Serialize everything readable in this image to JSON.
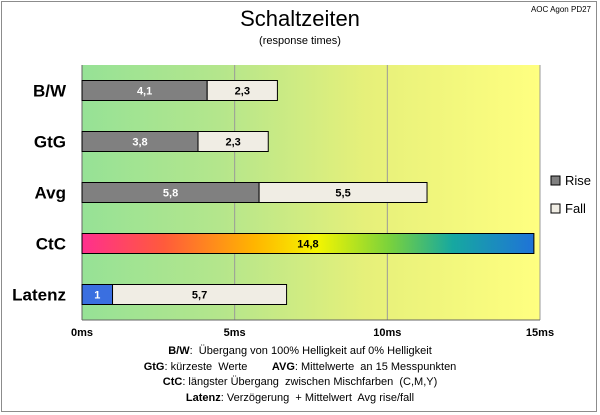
{
  "chart_data": {
    "type": "bar",
    "orientation": "horizontal",
    "stacked": true,
    "title": "Schaltzeiten",
    "subtitle": "(response times)",
    "corner_label": "AOC Agon PD27",
    "categories": [
      "B/W",
      "GtG",
      "Avg",
      "CtC",
      "Latenz"
    ],
    "series": [
      {
        "name": "Rise",
        "values": [
          4.1,
          3.8,
          5.8,
          null,
          1
        ],
        "labels": [
          "4,1",
          "3,8",
          "5,8",
          null,
          "1"
        ],
        "color": "#808080"
      },
      {
        "name": "Fall",
        "values": [
          2.3,
          2.3,
          5.5,
          null,
          5.7
        ],
        "labels": [
          "2,3",
          "2,3",
          "5,5",
          null,
          "5,7"
        ],
        "color": "#f0ede4"
      },
      {
        "name": "",
        "values": [
          null,
          null,
          null,
          14.8,
          null
        ],
        "labels": [
          null,
          null,
          null,
          "14,8",
          null
        ],
        "color": "rainbow"
      }
    ],
    "latenz_first_color": "#3a6fe0",
    "xlim": [
      0,
      15
    ],
    "xticks": [
      0,
      5,
      10,
      15
    ],
    "xtick_labels": [
      "0ms",
      "5ms",
      "10ms",
      "15ms"
    ],
    "legend": {
      "position": "right",
      "entries": [
        "Rise",
        "Fall"
      ]
    },
    "grid": true,
    "background_gradient": [
      "#96e296",
      "#b4e68c",
      "#e6f07a",
      "#ffff80"
    ]
  },
  "notes": [
    {
      "bold": "B/W",
      "text": ":  Übergang von 100% Helligkeit auf 0% Helligkeit"
    },
    {
      "bold": "GtG",
      "text": ": kürzeste  Werte        ",
      "bold2": "AVG",
      "text2": ": Mittelwerte  an 15 Messpunkten"
    },
    {
      "bold": "CtC",
      "text": ": längster Übergang  zwischen Mischfarben  (C,M,Y)"
    },
    {
      "bold": "Latenz",
      "text": ": Verzögerung  + Mittelwert  Avg rise/fall"
    }
  ]
}
